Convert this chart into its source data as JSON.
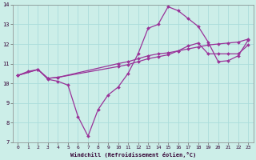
{
  "xlabel": "Windchill (Refroidissement éolien,°C)",
  "background_color": "#cceee8",
  "grid_color": "#aaddda",
  "line_color": "#993399",
  "xlim": [
    -0.5,
    23.5
  ],
  "ylim": [
    7,
    14
  ],
  "yticks": [
    7,
    8,
    9,
    10,
    11,
    12,
    13,
    14
  ],
  "xticks": [
    0,
    1,
    2,
    3,
    4,
    5,
    6,
    7,
    8,
    9,
    10,
    11,
    12,
    13,
    14,
    15,
    16,
    17,
    18,
    19,
    20,
    21,
    22,
    23
  ],
  "s1_x": [
    0,
    1,
    2,
    3,
    4,
    5,
    6,
    7,
    8,
    9,
    10,
    11,
    12,
    13,
    14,
    15,
    16,
    17,
    18,
    19,
    20,
    21,
    22,
    23
  ],
  "s1_y": [
    10.4,
    10.6,
    10.7,
    10.2,
    10.1,
    9.9,
    8.3,
    7.3,
    8.65,
    9.4,
    9.8,
    10.5,
    11.5,
    12.8,
    13.0,
    13.9,
    13.7,
    13.3,
    12.9,
    12.1,
    11.1,
    11.15,
    11.4,
    12.2
  ],
  "s2_x": [
    0,
    2,
    3,
    4,
    10,
    11,
    12,
    13,
    14,
    15,
    16,
    17,
    18,
    19,
    20,
    21,
    22,
    23
  ],
  "s2_y": [
    10.4,
    10.7,
    10.25,
    10.3,
    11.0,
    11.1,
    11.25,
    11.4,
    11.5,
    11.55,
    11.65,
    11.75,
    11.85,
    11.95,
    12.0,
    12.05,
    12.1,
    12.25
  ],
  "s3_x": [
    0,
    2,
    3,
    4,
    10,
    11,
    12,
    13,
    14,
    15,
    16,
    17,
    18,
    19,
    20,
    21,
    22,
    23
  ],
  "s3_y": [
    10.4,
    10.7,
    10.25,
    10.3,
    10.85,
    10.95,
    11.1,
    11.25,
    11.35,
    11.45,
    11.65,
    11.9,
    12.05,
    11.5,
    11.5,
    11.5,
    11.5,
    11.95
  ]
}
